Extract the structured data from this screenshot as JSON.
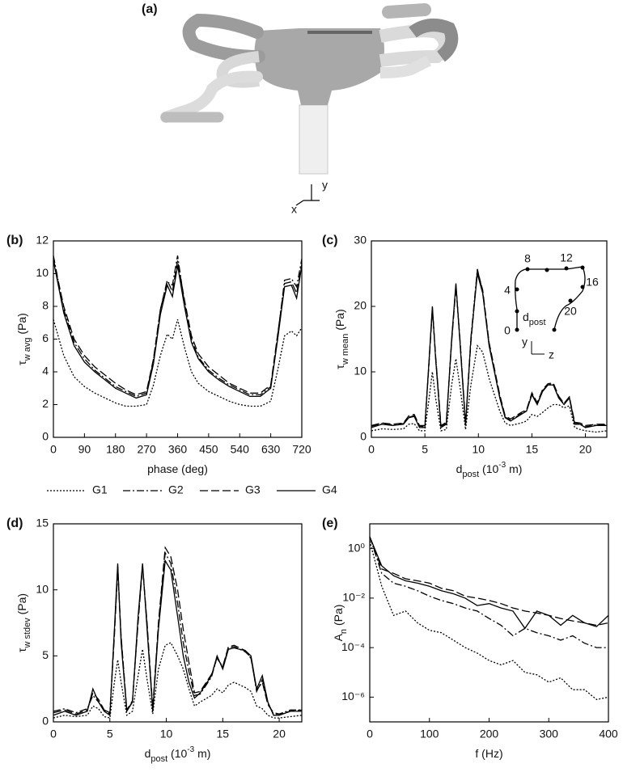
{
  "panel_a": {
    "label": "(a)",
    "axes": [
      "x",
      "y"
    ]
  },
  "chart_data": [
    {
      "type": "line",
      "label": "(b)",
      "xlabel": [
        {
          "t": "phase (deg)"
        }
      ],
      "ylabel": [
        {
          "t": "τ"
        },
        {
          "t": "w avg",
          "pos": "sub"
        },
        {
          "t": " (Pa)"
        }
      ],
      "xlim": [
        0,
        720
      ],
      "ylim": [
        0,
        12
      ],
      "xticks": [
        0,
        90,
        180,
        270,
        360,
        450,
        540,
        630,
        720
      ],
      "yticks": [
        0,
        2,
        4,
        6,
        8,
        10,
        12
      ],
      "x": [
        0,
        30,
        60,
        90,
        120,
        150,
        180,
        210,
        240,
        270,
        290,
        310,
        330,
        345,
        360,
        380,
        400,
        420,
        450,
        480,
        510,
        540,
        570,
        600,
        630,
        650,
        670,
        690,
        705,
        720
      ],
      "series": [
        {
          "name": "G1",
          "color": "#000000",
          "dash": "dotted",
          "values": [
            7.2,
            5.0,
            3.7,
            3.1,
            2.7,
            2.4,
            2.1,
            1.9,
            1.9,
            2.0,
            3.2,
            5.0,
            6.3,
            6.0,
            7.2,
            5.5,
            4.0,
            3.3,
            2.8,
            2.5,
            2.2,
            2.0,
            1.9,
            1.9,
            2.2,
            4.1,
            6.2,
            6.5,
            6.2,
            6.7
          ]
        },
        {
          "name": "G2",
          "color": "#000000",
          "dash": "dashdot",
          "values": [
            11.1,
            7.8,
            5.8,
            4.8,
            4.1,
            3.6,
            3.1,
            2.8,
            2.5,
            2.7,
            4.7,
            7.8,
            9.5,
            9.3,
            11.1,
            8.2,
            6.0,
            4.9,
            4.1,
            3.6,
            3.2,
            2.9,
            2.6,
            2.6,
            3.1,
            6.2,
            9.6,
            9.7,
            9.2,
            10.9
          ]
        },
        {
          "name": "G3",
          "color": "#000000",
          "dash": "dashed",
          "values": [
            10.9,
            8.0,
            6.0,
            5.0,
            4.3,
            3.8,
            3.3,
            2.9,
            2.6,
            2.8,
            4.8,
            7.8,
            9.6,
            8.9,
            10.8,
            8.4,
            6.2,
            5.1,
            4.3,
            3.8,
            3.3,
            3.0,
            2.7,
            2.7,
            3.2,
            6.3,
            9.4,
            9.5,
            8.8,
            10.6
          ]
        },
        {
          "name": "G4",
          "color": "#000000",
          "dash": "solid",
          "values": [
            10.8,
            7.6,
            5.6,
            4.6,
            4.0,
            3.5,
            3.0,
            2.7,
            2.4,
            2.6,
            4.5,
            7.5,
            9.3,
            8.6,
            10.5,
            8.0,
            5.8,
            4.8,
            4.0,
            3.5,
            3.1,
            2.8,
            2.5,
            2.5,
            3.0,
            6.0,
            9.2,
            9.3,
            8.5,
            10.5
          ]
        }
      ]
    },
    {
      "type": "line",
      "label": "(c)",
      "xlabel": [
        {
          "t": "d"
        },
        {
          "t": "post",
          "pos": "sub"
        },
        {
          "t": " (10"
        },
        {
          "t": "-3",
          "pos": "sup"
        },
        {
          "t": " m)"
        }
      ],
      "ylabel": [
        {
          "t": "τ"
        },
        {
          "t": "w mean",
          "pos": "sub"
        },
        {
          "t": " (Pa)"
        }
      ],
      "xlim": [
        0,
        22
      ],
      "ylim": [
        0,
        30
      ],
      "xticks": [
        0,
        5,
        10,
        15,
        20
      ],
      "yticks": [
        0,
        10,
        20,
        30
      ],
      "inset": {
        "ticks": [
          0,
          4,
          8,
          12,
          16,
          20
        ],
        "label": [
          {
            "t": "d"
          },
          {
            "t": "post",
            "pos": "sub"
          }
        ],
        "axes": [
          "y",
          "z"
        ]
      },
      "x": [
        0,
        1,
        2,
        3,
        3.5,
        4,
        4.5,
        5,
        5.4,
        5.7,
        6,
        6.5,
        7,
        7.5,
        7.9,
        8.3,
        8.8,
        9.3,
        9.9,
        10.4,
        11,
        11.5,
        12,
        12.5,
        13,
        14,
        14.5,
        15,
        15.5,
        16,
        16.5,
        17,
        17.5,
        18,
        18.5,
        19,
        19.5,
        20,
        21,
        22
      ],
      "series": [
        {
          "color": "#000000",
          "dash": "dotted",
          "values": [
            1.0,
            1.3,
            1.2,
            1.3,
            2.0,
            2.1,
            1.0,
            1.0,
            6,
            10,
            6,
            1.0,
            1.2,
            8,
            12,
            7.5,
            1.2,
            8,
            14,
            13,
            9,
            6.5,
            4,
            2.2,
            1.8,
            2.2,
            2.5,
            3.5,
            3.2,
            3.8,
            4.5,
            5,
            5,
            4.5,
            4.8,
            1.5,
            1.2,
            1.0,
            0.8,
            1.0
          ]
        },
        {
          "color": "#000000",
          "dash": "dashdot",
          "values": [
            1.7,
            2.1,
            1.9,
            2.1,
            3.1,
            3.3,
            1.7,
            1.6,
            11.8,
            19.8,
            12.2,
            1.7,
            2.1,
            14.8,
            23.3,
            14.2,
            1.9,
            15.2,
            25.7,
            22.2,
            14.2,
            10.2,
            6.2,
            3.1,
            2.6,
            3.6,
            4.1,
            6.6,
            5.1,
            7.1,
            8.1,
            8.1,
            6.1,
            5.1,
            6.1,
            2.1,
            2.1,
            1.6,
            1.9,
            1.9
          ]
        },
        {
          "color": "#000000",
          "dash": "dashed",
          "values": [
            1.8,
            2.2,
            2.0,
            2.2,
            3.3,
            3.5,
            1.8,
            1.8,
            11.5,
            19.5,
            12.5,
            1.8,
            2.3,
            14.5,
            23,
            14.5,
            2.0,
            14.5,
            25.5,
            22.5,
            14.5,
            10.5,
            6.5,
            3.3,
            2.8,
            3.8,
            4.2,
            6.8,
            5.3,
            7.3,
            8.2,
            8.3,
            6.3,
            5.2,
            6.2,
            2.3,
            2.2,
            1.8,
            2.0,
            2.0
          ]
        },
        {
          "color": "#000000",
          "dash": "solid",
          "values": [
            1.5,
            2.0,
            1.8,
            2.0,
            3.0,
            3.2,
            1.5,
            1.5,
            12,
            20,
            12,
            1.5,
            2,
            15,
            23.5,
            14,
            1.8,
            15,
            25,
            22,
            14,
            10,
            6,
            3,
            2.5,
            3.5,
            4,
            6.5,
            5,
            7,
            8,
            8,
            6,
            5,
            6,
            2,
            2,
            1.5,
            1.8,
            1.8
          ]
        }
      ]
    },
    {
      "type": "line",
      "label": "(d)",
      "xlabel": [
        {
          "t": "d"
        },
        {
          "t": "post",
          "pos": "sub"
        },
        {
          "t": " (10"
        },
        {
          "t": "-3",
          "pos": "sup"
        },
        {
          "t": " m)"
        }
      ],
      "ylabel": [
        {
          "t": "τ"
        },
        {
          "t": "w stdev",
          "pos": "sub"
        },
        {
          "t": " (Pa)"
        }
      ],
      "xlim": [
        0,
        22
      ],
      "ylim": [
        0,
        15
      ],
      "xticks": [
        0,
        5,
        10,
        15,
        20
      ],
      "yticks": [
        0,
        5,
        10,
        15
      ],
      "x": [
        0,
        1,
        2,
        3,
        3.5,
        4,
        4.5,
        5,
        5.4,
        5.7,
        6,
        6.5,
        7,
        7.5,
        7.9,
        8.3,
        8.8,
        9.3,
        9.9,
        10.4,
        11,
        11.5,
        12,
        12.5,
        13,
        14,
        14.5,
        15,
        15.5,
        16,
        16.5,
        17,
        17.5,
        18,
        18.5,
        19,
        19.5,
        20,
        21,
        22
      ],
      "series": [
        {
          "color": "#000000",
          "dash": "dotted",
          "values": [
            0.3,
            0.5,
            0.4,
            0.5,
            1.2,
            1.0,
            0.4,
            0.3,
            3,
            4.7,
            3,
            0.5,
            0.8,
            3.5,
            5.5,
            3.2,
            0.6,
            4,
            5.8,
            6,
            5,
            4,
            2.5,
            1.2,
            1.5,
            2,
            2.5,
            2.2,
            2.8,
            3,
            2.8,
            2.6,
            2.3,
            1.2,
            1.0,
            0.5,
            0.3,
            0.3,
            0.4,
            0.5
          ]
        },
        {
          "color": "#000000",
          "dash": "dashdot",
          "values": [
            0.8,
            1.0,
            0.7,
            1.0,
            2.0,
            1.5,
            0.9,
            0.7,
            6.8,
            11.8,
            6.3,
            0.9,
            1.5,
            7.8,
            11.9,
            7.2,
            0.9,
            7.3,
            12.8,
            12.0,
            9,
            6,
            3.8,
            2.0,
            2.1,
            3.4,
            4.9,
            4.1,
            5.6,
            5.7,
            5.5,
            5.3,
            4.9,
            2.3,
            3.2,
            1.4,
            0.6,
            0.6,
            0.9,
            0.9
          ]
        },
        {
          "color": "#000000",
          "dash": "dashed",
          "values": [
            0.7,
            0.9,
            0.6,
            0.9,
            2.2,
            1.7,
            0.9,
            0.6,
            6.5,
            11.5,
            6.5,
            0.9,
            1.6,
            7.5,
            11.8,
            7.5,
            1.0,
            7.5,
            13.2,
            12.5,
            10,
            7,
            4.5,
            2.2,
            2.3,
            3.6,
            4.8,
            4.2,
            5.7,
            5.8,
            5.6,
            5.4,
            4.8,
            2.4,
            3.0,
            1.3,
            0.7,
            0.6,
            0.8,
            0.9
          ]
        },
        {
          "color": "#000000",
          "dash": "solid",
          "values": [
            0.5,
            0.8,
            0.5,
            0.8,
            2.5,
            1.5,
            0.8,
            0.5,
            7,
            12,
            6,
            0.8,
            1.5,
            8,
            12,
            7,
            0.8,
            7,
            12.2,
            11.5,
            8,
            5,
            3,
            1.8,
            2.2,
            3.5,
            5,
            4,
            5.5,
            5.6,
            5.5,
            5.4,
            5.0,
            2.5,
            3.5,
            1.5,
            0.5,
            0.5,
            0.8,
            0.8
          ]
        }
      ]
    },
    {
      "type": "line",
      "label": "(e)",
      "log_y": true,
      "xlabel": [
        {
          "t": "f (Hz)"
        }
      ],
      "ylabel": [
        {
          "t": "A"
        },
        {
          "t": "n",
          "pos": "sub"
        },
        {
          "t": " (Pa)"
        }
      ],
      "xlim": [
        0,
        400
      ],
      "ylim": [
        1e-07,
        10
      ],
      "xticks": [
        0,
        100,
        200,
        300,
        400
      ],
      "yticks": [
        {
          "value": 1,
          "label": "10⁰"
        },
        {
          "value": 0.01,
          "label": "10⁻²"
        },
        {
          "value": 0.0001,
          "label": "10⁻⁴"
        },
        {
          "value": 1e-06,
          "label": "10⁻⁶"
        }
      ],
      "x": [
        0,
        20,
        40,
        60,
        80,
        100,
        120,
        140,
        160,
        180,
        200,
        220,
        240,
        260,
        280,
        300,
        320,
        340,
        360,
        380,
        400
      ],
      "series": [
        {
          "color": "#000000",
          "dash": "dotted",
          "values": [
            2,
            0.03,
            0.002,
            0.003,
            0.001,
            0.0005,
            0.0004,
            0.0002,
            0.0001,
            6e-05,
            3e-05,
            2e-05,
            3e-05,
            1e-05,
            8e-06,
            4e-06,
            6e-06,
            2e-06,
            2e-06,
            8e-07,
            1e-06
          ]
        },
        {
          "color": "#000000",
          "dash": "dashdot",
          "values": [
            3,
            0.1,
            0.04,
            0.03,
            0.02,
            0.012,
            0.008,
            0.006,
            0.004,
            0.003,
            0.0015,
            0.0008,
            0.0003,
            0.0006,
            0.0004,
            0.0003,
            0.0002,
            0.0003,
            0.00015,
            0.0001,
            0.0001
          ]
        },
        {
          "color": "#000000",
          "dash": "dashed",
          "values": [
            3,
            0.15,
            0.1,
            0.06,
            0.05,
            0.04,
            0.025,
            0.02,
            0.012,
            0.01,
            0.008,
            0.006,
            0.004,
            0.003,
            0.0025,
            0.002,
            0.0015,
            0.0012,
            0.001,
            0.0008,
            0.001
          ]
        },
        {
          "color": "#000000",
          "dash": "solid",
          "values": [
            3,
            0.2,
            0.08,
            0.05,
            0.04,
            0.03,
            0.02,
            0.015,
            0.01,
            0.005,
            0.006,
            0.004,
            0.003,
            0.0006,
            0.003,
            0.002,
            0.0008,
            0.002,
            0.001,
            0.0007,
            0.002
          ]
        }
      ]
    }
  ]
}
